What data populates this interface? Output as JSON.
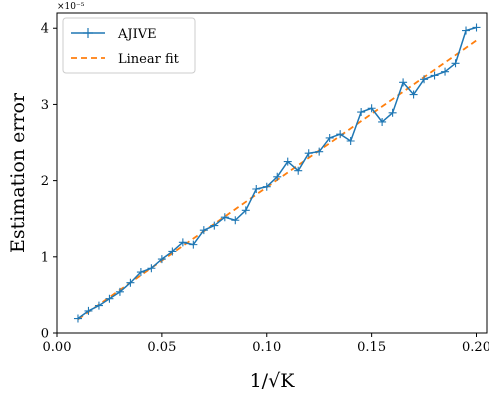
{
  "chart_data": {
    "type": "line",
    "xlabel": "1/√K",
    "ylabel": "Estimation error",
    "y_multiplier_label": "×10⁻⁵",
    "xlim": [
      0.0,
      0.205
    ],
    "ylim": [
      0.0,
      4.2
    ],
    "x_ticks": [
      0.0,
      0.05,
      0.1,
      0.15,
      0.2
    ],
    "x_tick_labels": [
      "0.00",
      "0.05",
      "0.10",
      "0.15",
      "0.20"
    ],
    "y_ticks": [
      0,
      1,
      2,
      3,
      4
    ],
    "y_tick_labels": [
      "0",
      "1",
      "2",
      "3",
      "4"
    ],
    "grid": false,
    "legend_position": "top-left",
    "series": [
      {
        "name": "AJIVE",
        "style": "solid-plus-markers",
        "color": "#1f77b4",
        "x": [
          0.01,
          0.015,
          0.02,
          0.025,
          0.03,
          0.035,
          0.04,
          0.045,
          0.05,
          0.055,
          0.06,
          0.065,
          0.07,
          0.075,
          0.08,
          0.085,
          0.09,
          0.095,
          0.1,
          0.105,
          0.11,
          0.115,
          0.12,
          0.125,
          0.13,
          0.135,
          0.14,
          0.145,
          0.15,
          0.155,
          0.16,
          0.165,
          0.17,
          0.175,
          0.18,
          0.185,
          0.19,
          0.195,
          0.2
        ],
        "y": [
          0.19,
          0.29,
          0.36,
          0.45,
          0.54,
          0.66,
          0.8,
          0.85,
          0.97,
          1.07,
          1.19,
          1.16,
          1.35,
          1.41,
          1.52,
          1.48,
          1.61,
          1.89,
          1.92,
          2.05,
          2.25,
          2.13,
          2.36,
          2.38,
          2.56,
          2.61,
          2.52,
          2.9,
          2.95,
          2.77,
          2.89,
          3.29,
          3.13,
          3.33,
          3.38,
          3.43,
          3.54,
          3.97,
          4.01
        ]
      },
      {
        "name": "Linear fit",
        "style": "dashed",
        "color": "#ff7f0e",
        "x": [
          0.01,
          0.2
        ],
        "y": [
          0.18,
          3.84
        ]
      }
    ]
  }
}
